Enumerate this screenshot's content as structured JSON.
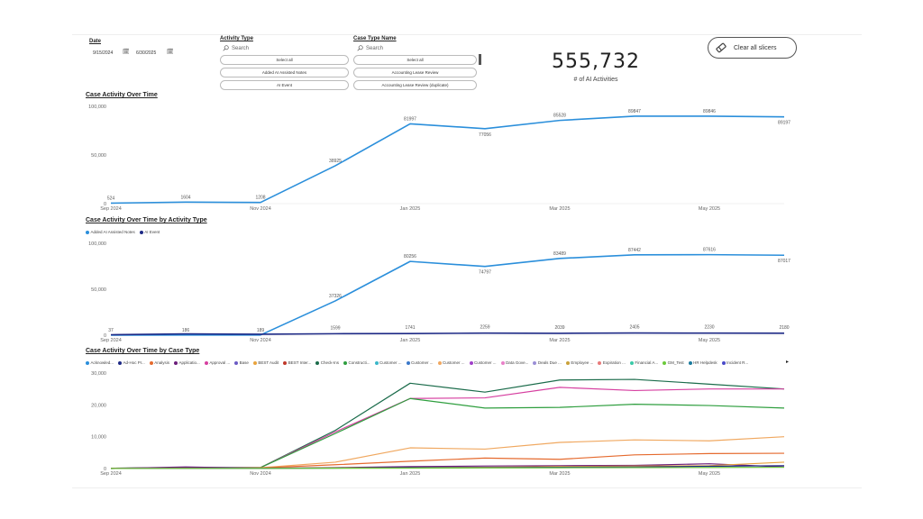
{
  "slicers": {
    "date": {
      "title": "Date",
      "start": "9/15/2024",
      "end": "6/30/2025"
    },
    "activity_type": {
      "title": "Activity Type",
      "search_placeholder": "Search",
      "options": [
        "Select all",
        "Added AI Assisted Notes",
        "AI Event"
      ]
    },
    "case_type": {
      "title": "Case Type Name",
      "search_placeholder": "Search",
      "options": [
        "Select all",
        "Accounting Lease Review",
        "Accounting Lease Review (duplicate)"
      ]
    }
  },
  "kpi": {
    "value": "555,732",
    "label": "# of AI Activities"
  },
  "clear_button": {
    "label": "Clear all slicers"
  },
  "colors": {
    "primary": "#2b8fdb",
    "navy": "#1e2a86"
  },
  "chart_data": [
    {
      "type": "line",
      "title": "Case Activity Over Time",
      "x": [
        "Sep 2024",
        "Oct 2024",
        "Nov 2024",
        "Dec 2024",
        "Jan 2025",
        "Feb 2025",
        "Mar 2025",
        "Apr 2025",
        "May 2025",
        "Jun 2025"
      ],
      "x_tick_labels": [
        "Sep 2024",
        "Nov 2024",
        "Jan 2025",
        "Mar 2025",
        "May 2025"
      ],
      "y_ticks": [
        "0",
        "50,000",
        "100,000"
      ],
      "ylim": [
        0,
        100000
      ],
      "series": [
        {
          "color": "#2b8fdb",
          "values": [
            524,
            1604,
            1208,
            38925,
            81997,
            77056,
            85528,
            89847,
            89846,
            89197
          ],
          "labels": [
            "524",
            "1604",
            "1208",
            "38925",
            "81997",
            "77056",
            "85528",
            "89847",
            "89846",
            "89197"
          ]
        }
      ],
      "grid": false
    },
    {
      "type": "line",
      "title": "Case Activity Over Time by Activity Type",
      "x": [
        "Sep 2024",
        "Oct 2024",
        "Nov 2024",
        "Dec 2024",
        "Jan 2025",
        "Feb 2025",
        "Mar 2025",
        "Apr 2025",
        "May 2025",
        "Jun 2025"
      ],
      "x_tick_labels": [
        "Sep 2024",
        "Nov 2024",
        "Jan 2025",
        "Mar 2025",
        "May 2025"
      ],
      "y_ticks": [
        "0",
        "50,000",
        "100,000"
      ],
      "ylim": [
        0,
        100000
      ],
      "legend_position": "top-left",
      "series": [
        {
          "name": "Added AI Assisted Notes",
          "color": "#2b8fdb",
          "values": [
            37,
            186,
            189,
            37326,
            80256,
            74797,
            83489,
            87442,
            87616,
            87017
          ],
          "labels": [
            "37",
            "186",
            "189",
            "37326",
            "80256",
            "74797",
            "83489",
            "87442",
            "87616",
            "87017"
          ]
        },
        {
          "name": "AI Event",
          "color": "#1e2a86",
          "values": [
            487,
            1418,
            1019,
            1599,
            1741,
            2259,
            2039,
            2405,
            2230,
            2180
          ],
          "labels": [
            "",
            "",
            "",
            "1599",
            "1741",
            "2259",
            "2039",
            "2405",
            "2230",
            "2180"
          ]
        }
      ],
      "grid": false
    },
    {
      "type": "line",
      "title": "Case Activity Over Time by Case Type",
      "x": [
        "Sep 2024",
        "Oct 2024",
        "Nov 2024",
        "Dec 2024",
        "Jan 2025",
        "Feb 2025",
        "Mar 2025",
        "Apr 2025",
        "May 2025",
        "Jun 2025"
      ],
      "x_tick_labels": [
        "Sep 2024",
        "Nov 2024",
        "Jan 2025",
        "Mar 2025",
        "May 2025"
      ],
      "y_ticks": [
        "0",
        "10,000",
        "20,000",
        "30,000"
      ],
      "ylim": [
        0,
        30000
      ],
      "legend_position": "top",
      "legend_entries": [
        {
          "name": "Acknowled...",
          "color": "#2b8fdb"
        },
        {
          "name": "Ad-Hoc Pr...",
          "color": "#1e2a86"
        },
        {
          "name": "Analysis",
          "color": "#e56a2e"
        },
        {
          "name": "Applicatio...",
          "color": "#6b1d7a"
        },
        {
          "name": "Approval ...",
          "color": "#d63fa0"
        },
        {
          "name": "Base",
          "color": "#6b5bc4"
        },
        {
          "name": "BEST Audit",
          "color": "#e8a33d"
        },
        {
          "name": "BEST Inter...",
          "color": "#c0392b"
        },
        {
          "name": "Check-Ins",
          "color": "#1a6b4a"
        },
        {
          "name": "Constructi...",
          "color": "#2e9e3e"
        },
        {
          "name": "Customer ...",
          "color": "#3ab7c9"
        },
        {
          "name": "Customer ...",
          "color": "#3a78c9"
        },
        {
          "name": "Customer ...",
          "color": "#f0a860"
        },
        {
          "name": "Customer ...",
          "color": "#a03fc9"
        },
        {
          "name": "Data Gove...",
          "color": "#e880c8"
        },
        {
          "name": "Deals Due ...",
          "color": "#9b8fd6"
        },
        {
          "name": "Employee ...",
          "color": "#c9a13a"
        },
        {
          "name": "Expiration ...",
          "color": "#e87a7a"
        },
        {
          "name": "Financial A...",
          "color": "#3ac9a8"
        },
        {
          "name": "GM_Test",
          "color": "#6bc93a"
        },
        {
          "name": "HR Helpdesk",
          "color": "#1a7a9e"
        },
        {
          "name": "Incident R...",
          "color": "#4a4ac9"
        }
      ],
      "series": [
        {
          "name": "Check-Ins",
          "color": "#1a6b4a",
          "values": [
            100,
            300,
            300,
            12000,
            26800,
            24000,
            27800,
            28000,
            26500,
            25000
          ]
        },
        {
          "name": "Approval ...",
          "color": "#d63fa0",
          "values": [
            100,
            300,
            300,
            11500,
            22000,
            22200,
            25500,
            24500,
            25000,
            25000
          ]
        },
        {
          "name": "Constructi...",
          "color": "#2e9e3e",
          "values": [
            100,
            300,
            300,
            11000,
            22000,
            19000,
            19200,
            20200,
            19800,
            19000
          ]
        },
        {
          "name": "Customer ...",
          "color": "#f0a860",
          "values": [
            50,
            200,
            250,
            2000,
            6500,
            6100,
            8200,
            9000,
            8700,
            10000
          ]
        },
        {
          "name": "Analysis",
          "color": "#e56a2e",
          "values": [
            50,
            150,
            200,
            1200,
            2300,
            3300,
            2900,
            4300,
            4700,
            4800
          ]
        },
        {
          "name": "Applicatio...",
          "color": "#6b1d7a",
          "values": [
            20,
            500,
            100,
            300,
            600,
            800,
            900,
            1000,
            1500,
            500
          ]
        },
        {
          "name": "BEST Audit",
          "color": "#e8a33d",
          "values": [
            20,
            80,
            100,
            200,
            300,
            400,
            600,
            800,
            900,
            2000
          ]
        },
        {
          "name": "Ad-Hoc Pr...",
          "color": "#1e2a86",
          "values": [
            10,
            60,
            80,
            150,
            300,
            300,
            400,
            500,
            700,
            900
          ]
        },
        {
          "name": "GM_Test",
          "color": "#6bc93a",
          "values": [
            10,
            50,
            60,
            100,
            150,
            200,
            250,
            300,
            350,
            400
          ]
        }
      ],
      "grid": false
    }
  ]
}
